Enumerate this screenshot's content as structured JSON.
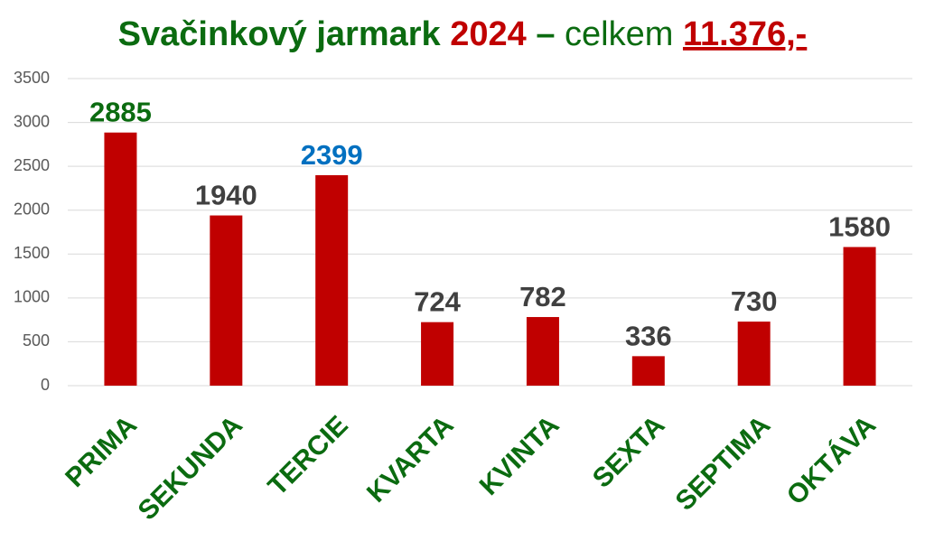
{
  "chart_data": {
    "type": "bar",
    "title_parts": [
      {
        "text": "Svačinkový jarmark ",
        "color": "#0b6b10",
        "bold": true,
        "underline": false
      },
      {
        "text": "2024",
        "color": "#c00000",
        "bold": true,
        "underline": false
      },
      {
        "text": " – ",
        "color": "#0b6b10",
        "bold": true,
        "underline": false
      },
      {
        "text": "celkem ",
        "color": "#0b6b10",
        "bold": false,
        "underline": false
      },
      {
        "text": "11.376,-",
        "color": "#c00000",
        "bold": true,
        "underline": true
      }
    ],
    "categories": [
      "PRIMA",
      "SEKUNDA",
      "TERCIE",
      "KVARTA",
      "KVINTA",
      "SEXTA",
      "SEPTIMA",
      "OKTÁVA"
    ],
    "values": [
      2885,
      1940,
      2399,
      724,
      782,
      336,
      730,
      1580
    ],
    "color": "#c00000",
    "value_label_colors": [
      "#0b6b10",
      "#404040",
      "#0070c0",
      "#404040",
      "#404040",
      "#404040",
      "#404040",
      "#404040"
    ],
    "category_color": "#0b6b10",
    "ylim": [
      0,
      3500
    ],
    "yticks": [
      0,
      500,
      1000,
      1500,
      2000,
      2500,
      3000,
      3500
    ],
    "grid": true
  }
}
